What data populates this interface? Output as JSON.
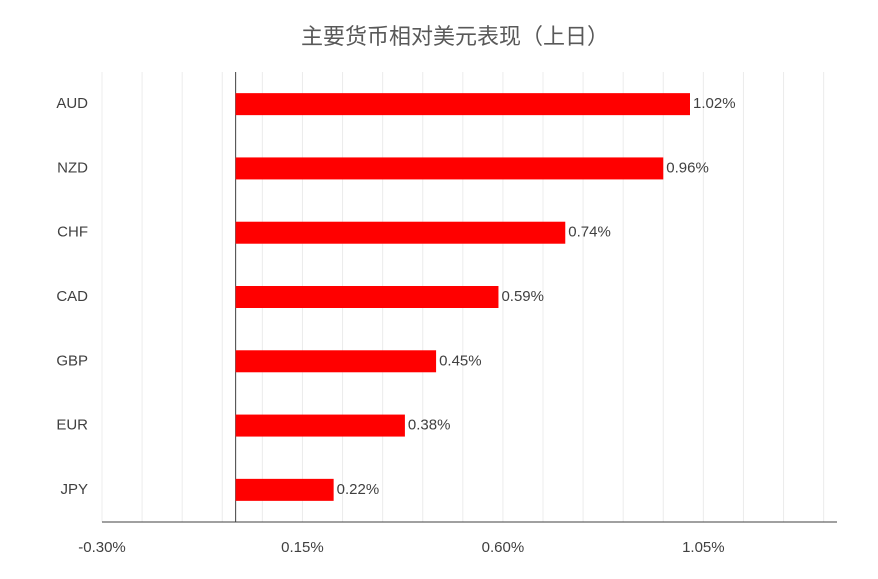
{
  "chart_data": {
    "type": "hbar",
    "title": "主要货币相对美元表现（上日）",
    "categories": [
      "AUD",
      "NZD",
      "CHF",
      "CAD",
      "GBP",
      "EUR",
      "JPY"
    ],
    "values": [
      1.02,
      0.96,
      0.74,
      0.59,
      0.45,
      0.38,
      0.22
    ],
    "value_labels": [
      "1.02%",
      "0.96%",
      "0.74%",
      "0.59%",
      "0.45%",
      "0.38%",
      "0.22%"
    ],
    "color": "#ff0000",
    "xlim": [
      -0.3,
      1.35
    ],
    "xticks": [
      {
        "value": -0.3,
        "label": "-0.30%"
      },
      {
        "value": 0.15,
        "label": "0.15%"
      },
      {
        "value": 0.6,
        "label": "0.60%"
      },
      {
        "value": 1.05,
        "label": "1.05%"
      }
    ],
    "minor_xticks": [
      -0.21,
      -0.12,
      -0.03,
      0.06,
      0.24,
      0.33,
      0.42,
      0.51,
      0.69,
      0.78,
      0.87,
      0.96,
      1.14,
      1.23,
      1.32
    ],
    "grid": true
  }
}
